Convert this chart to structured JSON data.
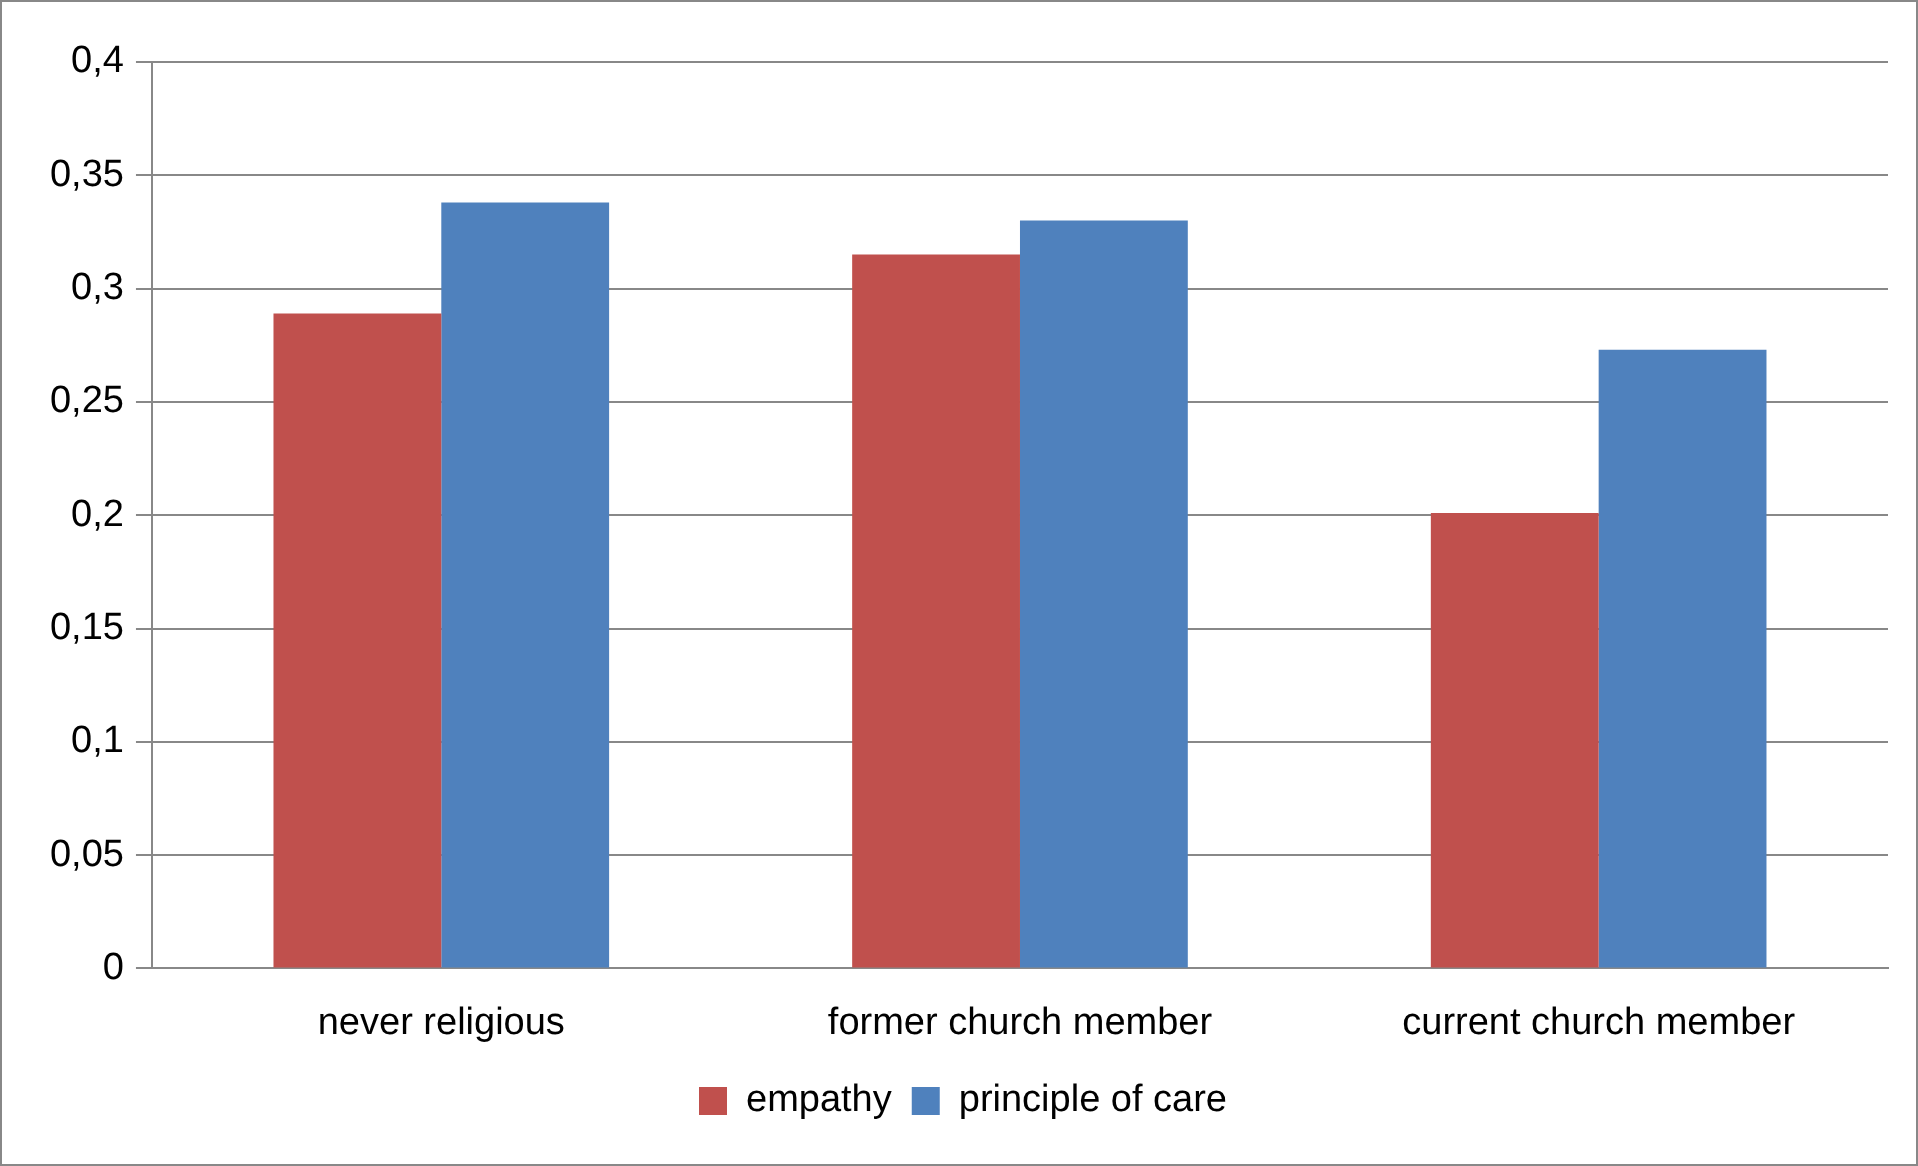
{
  "chart_data": {
    "type": "bar",
    "categories": [
      "never religious",
      "former church member",
      "current church member"
    ],
    "series": [
      {
        "name": "empathy",
        "color": "#c0504d",
        "values": [
          0.289,
          0.315,
          0.201
        ]
      },
      {
        "name": "principle of care",
        "color": "#4f81bd",
        "values": [
          0.338,
          0.33,
          0.273
        ]
      }
    ],
    "ylim": [
      0,
      0.4
    ],
    "yticks": [
      {
        "value": 0,
        "label": "0"
      },
      {
        "value": 0.05,
        "label": "0,05"
      },
      {
        "value": 0.1,
        "label": "0,1"
      },
      {
        "value": 0.15,
        "label": "0,15"
      },
      {
        "value": 0.2,
        "label": "0,2"
      },
      {
        "value": 0.25,
        "label": "0,25"
      },
      {
        "value": 0.3,
        "label": "0,3"
      },
      {
        "value": 0.35,
        "label": "0,35"
      },
      {
        "value": 0.4,
        "label": "0,4"
      }
    ],
    "grid": "y",
    "legend": "bottom"
  }
}
